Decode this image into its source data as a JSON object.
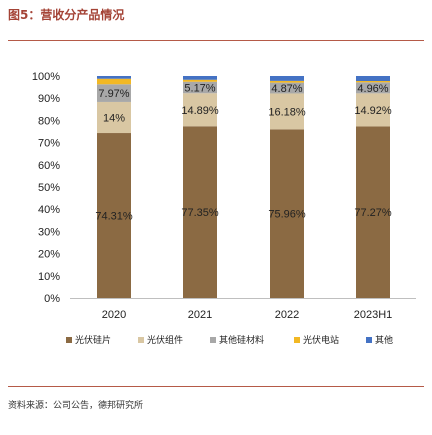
{
  "figure_title": "图5：营收分产品情况",
  "source_note": "资料来源：公司公告，德邦研究所",
  "chart_data": {
    "type": "bar",
    "stacked": true,
    "categories": [
      "2020",
      "2021",
      "2022",
      "2023H1"
    ],
    "ylim": [
      0,
      100
    ],
    "yticks": [
      "0%",
      "10%",
      "20%",
      "30%",
      "40%",
      "50%",
      "60%",
      "70%",
      "80%",
      "90%",
      "100%"
    ],
    "legend_position": "bottom",
    "grid": false,
    "series": [
      {
        "name": "光伏硅片",
        "color": "#8b6a43",
        "values": [
          74.31,
          77.35,
          75.96,
          77.27
        ],
        "labels": [
          "74.31%",
          "77.35%",
          "75.96%",
          "77.27%"
        ]
      },
      {
        "name": "光伏组件",
        "color": "#d9c7a3",
        "values": [
          14.0,
          14.89,
          16.18,
          14.92
        ],
        "labels": [
          "14%",
          "14.89%",
          "16.18%",
          "14.92%"
        ]
      },
      {
        "name": "其他硅材料",
        "color": "#a8a8a8",
        "values": [
          7.97,
          5.17,
          4.87,
          4.96
        ],
        "labels": [
          "7.97%",
          "5.17%",
          "4.87%",
          "4.96%"
        ]
      },
      {
        "name": "光伏电站",
        "color": "#f2b824",
        "values": [
          2.5,
          0.9,
          0.8,
          0.6
        ],
        "labels": [
          "",
          "",
          "",
          ""
        ]
      },
      {
        "name": "其他",
        "color": "#4472c4",
        "values": [
          1.22,
          1.69,
          2.19,
          2.25
        ],
        "labels": [
          "",
          "",
          "",
          ""
        ]
      }
    ]
  }
}
